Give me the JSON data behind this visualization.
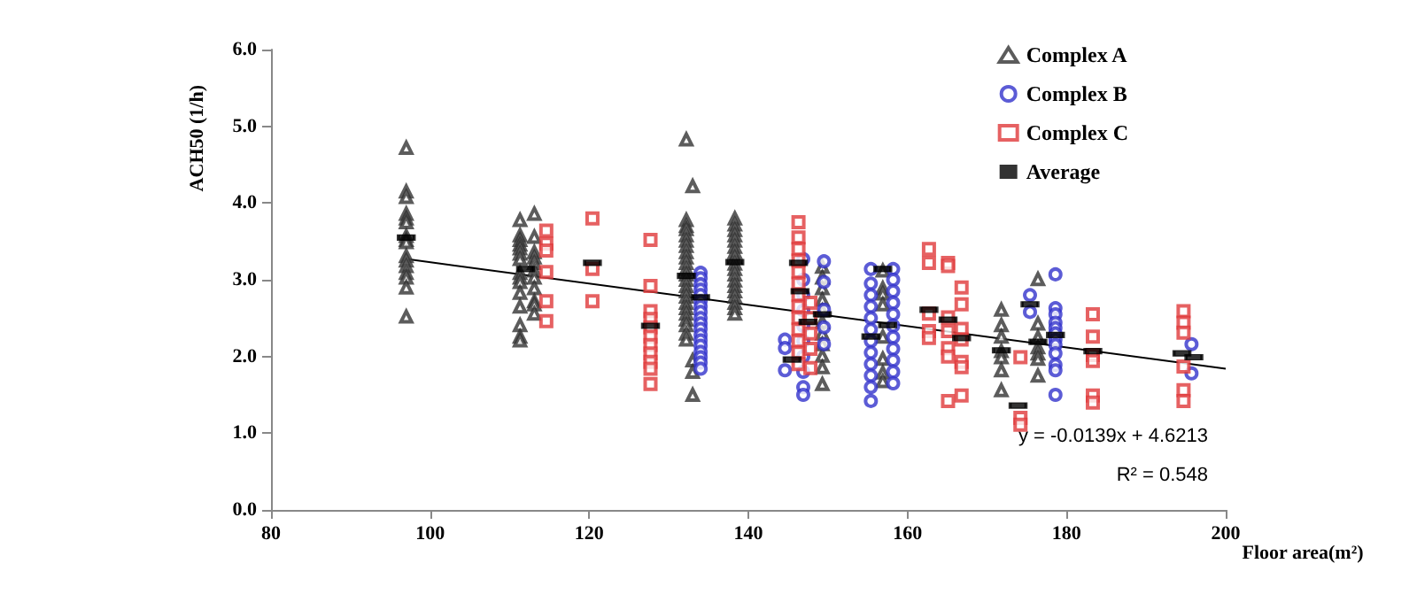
{
  "chart_data": {
    "type": "scatter",
    "xlabel": "Floor area(m²)",
    "ylabel": "ACH50 (1/h)",
    "xlim": [
      80,
      200
    ],
    "xticks": [
      80,
      100,
      120,
      140,
      160,
      180,
      200
    ],
    "ylim": [
      0,
      6
    ],
    "yticks": [
      {
        "value": 0,
        "label": "0.0"
      },
      {
        "value": 1,
        "label": "1.0"
      },
      {
        "value": 2,
        "label": "2.0"
      },
      {
        "value": 3,
        "label": "3.0"
      },
      {
        "value": 4,
        "label": "4.0"
      },
      {
        "value": 5,
        "label": "5.0"
      },
      {
        "value": 6,
        "label": "6.0"
      }
    ],
    "grid": false,
    "legend": "top right",
    "annotations": [
      "y = -0.0139x + 4.6213",
      "R² = 0.548"
    ],
    "series": [
      {
        "name": "Complex A",
        "color": "#333333",
        "marker": "triangle",
        "x": [
          97,
          97,
          97,
          97,
          97,
          97,
          97,
          97,
          97,
          97,
          97,
          97,
          97,
          97,
          97,
          97,
          111.3,
          111.3,
          111.3,
          111.3,
          111.3,
          111.3,
          111.3,
          111.3,
          111.3,
          111.3,
          111.3,
          111.3,
          111.3,
          111.3,
          111.3,
          113.1,
          113.1,
          113.1,
          113.1,
          113.1,
          113.1,
          113.1,
          113.1,
          113.1,
          113.1,
          113.1,
          132.2,
          132.2,
          132.2,
          132.2,
          132.2,
          132.2,
          132.2,
          132.2,
          132.2,
          132.2,
          132.2,
          132.2,
          132.2,
          132.2,
          132.2,
          132.2,
          132.2,
          132.2,
          132.2,
          132.2,
          132.2,
          132.2,
          132.2,
          133,
          133,
          133,
          133,
          138.3,
          138.3,
          138.3,
          138.3,
          138.3,
          138.3,
          138.3,
          138.3,
          138.3,
          138.3,
          138.3,
          138.3,
          138.3,
          138.3,
          138.3,
          138.3,
          138.3,
          138.3,
          149.3,
          149.3,
          149.3,
          149.3,
          149.3,
          149.3,
          149.3,
          149.3,
          149.3,
          149.3,
          149.3,
          156.9,
          156.9,
          156.9,
          156.9,
          156.9,
          156.9,
          156.9,
          156.9,
          171.8,
          171.8,
          171.8,
          171.8,
          171.8,
          171.8,
          171.8,
          176.4,
          176.4,
          176.4,
          176.4,
          176.4,
          176.4,
          176.4
        ],
        "values": [
          4.72,
          4.15,
          4.08,
          3.86,
          3.8,
          3.75,
          3.57,
          3.52,
          3.49,
          3.31,
          3.25,
          3.18,
          3.09,
          3.03,
          2.9,
          2.52,
          3.78,
          3.58,
          3.52,
          3.46,
          3.41,
          3.34,
          3.27,
          3.09,
          3.03,
          2.97,
          2.83,
          2.65,
          2.41,
          2.26,
          2.21,
          3.86,
          3.56,
          3.36,
          3.29,
          3.22,
          3.12,
          3.03,
          2.89,
          2.72,
          2.68,
          2.56,
          4.83,
          3.78,
          3.7,
          3.66,
          3.58,
          3.51,
          3.44,
          3.36,
          3.29,
          3.22,
          3.14,
          3.07,
          3.0,
          2.92,
          2.85,
          2.78,
          2.7,
          2.63,
          2.56,
          2.48,
          2.41,
          2.3,
          2.22,
          4.22,
          1.95,
          1.8,
          1.5,
          3.8,
          3.72,
          3.65,
          3.58,
          3.51,
          3.43,
          3.36,
          3.29,
          3.21,
          3.14,
          3.07,
          2.99,
          2.92,
          2.85,
          2.78,
          2.7,
          2.63,
          2.56,
          3.17,
          3.03,
          2.89,
          2.74,
          2.6,
          2.45,
          2.3,
          2.16,
          2.01,
          1.86,
          1.64,
          3.12,
          2.89,
          2.82,
          2.68,
          2.26,
          1.97,
          1.79,
          1.68,
          2.61,
          2.41,
          2.26,
          2.07,
          1.99,
          1.82,
          1.56,
          3.01,
          2.43,
          2.25,
          2.12,
          2.04,
          1.97,
          1.75
        ]
      },
      {
        "name": "Complex B",
        "color": "#3333cc",
        "marker": "circle",
        "x": [
          134,
          134,
          134,
          134,
          134,
          134,
          134,
          134,
          134,
          134,
          134,
          134,
          134,
          134,
          134,
          134,
          134,
          134,
          144.6,
          144.6,
          144.6,
          146.9,
          146.9,
          146.9,
          146.9,
          146.9,
          146.9,
          146.9,
          146.9,
          146.9,
          146.9,
          149.5,
          149.5,
          149.5,
          149.5,
          149.5,
          155.4,
          155.4,
          155.4,
          155.4,
          155.4,
          155.4,
          155.4,
          155.4,
          155.4,
          155.4,
          155.4,
          155.4,
          158.2,
          158.2,
          158.2,
          158.2,
          158.2,
          158.2,
          158.2,
          158.2,
          158.2,
          158.2,
          158.2,
          175.4,
          175.4,
          178.6,
          178.6,
          178.6,
          178.6,
          178.6,
          178.6,
          178.6,
          178.6,
          178.6,
          178.6,
          178.6,
          178.6,
          195.7,
          195.7
        ],
        "values": [
          3.09,
          3.02,
          2.94,
          2.87,
          2.8,
          2.72,
          2.65,
          2.58,
          2.5,
          2.43,
          2.36,
          2.28,
          2.21,
          2.14,
          2.06,
          1.99,
          1.92,
          1.84,
          2.22,
          2.11,
          1.82,
          3.27,
          3.0,
          2.8,
          2.6,
          2.4,
          2.2,
          2.0,
          1.8,
          1.6,
          1.5,
          3.24,
          2.97,
          2.61,
          2.38,
          2.16,
          3.14,
          2.95,
          2.8,
          2.65,
          2.5,
          2.35,
          2.2,
          2.05,
          1.9,
          1.75,
          1.6,
          1.42,
          3.14,
          3.0,
          2.85,
          2.7,
          2.55,
          2.4,
          2.25,
          2.1,
          1.95,
          1.8,
          1.65,
          2.8,
          2.58,
          3.07,
          2.63,
          2.55,
          2.44,
          2.37,
          2.3,
          2.22,
          2.15,
          2.04,
          1.89,
          1.82,
          1.5,
          2.16,
          1.78
        ]
      },
      {
        "name": "Complex C",
        "color": "#e0393b",
        "marker": "square",
        "x": [
          114.6,
          114.6,
          114.6,
          114.6,
          114.6,
          114.6,
          120.4,
          120.4,
          120.4,
          127.7,
          127.7,
          127.7,
          127.7,
          127.7,
          127.7,
          127.7,
          127.7,
          127.7,
          127.7,
          127.7,
          146.3,
          146.3,
          146.3,
          146.3,
          146.3,
          146.3,
          146.3,
          146.3,
          146.3,
          146.3,
          146.3,
          146.3,
          146.3,
          147.8,
          147.8,
          147.8,
          147.8,
          147.8,
          162.7,
          162.7,
          162.7,
          162.7,
          162.7,
          165.1,
          165.1,
          165.1,
          165.1,
          165.1,
          165.1,
          165.1,
          166.8,
          166.8,
          166.8,
          166.8,
          166.8,
          166.8,
          166.8,
          174.2,
          174.2,
          174.2,
          183.3,
          183.3,
          183.3,
          183.3,
          183.3,
          183.3,
          194.7,
          194.7,
          194.7,
          194.7,
          194.7,
          194.7
        ],
        "values": [
          3.64,
          3.47,
          3.38,
          3.1,
          2.72,
          2.46,
          3.8,
          3.14,
          2.72,
          3.52,
          2.92,
          2.59,
          2.49,
          2.38,
          2.26,
          2.15,
          2.04,
          1.93,
          1.84,
          1.64,
          3.75,
          3.55,
          3.4,
          3.25,
          3.1,
          2.95,
          2.8,
          2.65,
          2.5,
          2.35,
          2.2,
          2.05,
          1.9,
          2.7,
          2.5,
          2.3,
          2.1,
          1.85,
          3.4,
          3.22,
          2.56,
          2.33,
          2.24,
          3.22,
          3.18,
          2.51,
          2.33,
          2.11,
          2.0,
          1.42,
          2.9,
          2.68,
          2.36,
          2.22,
          1.93,
          1.86,
          1.49,
          1.99,
          1.2,
          1.11,
          2.55,
          2.26,
          2.02,
          1.94,
          1.49,
          1.4,
          2.59,
          2.44,
          2.31,
          1.87,
          1.56,
          1.42
        ]
      },
      {
        "name": "Average",
        "color": "#000000",
        "marker": "square",
        "x": [
          97,
          112,
          120.4,
          127.7,
          132.2,
          134,
          138.3,
          145.5,
          146.3,
          146.5,
          147.5,
          149.3,
          155.4,
          156.9,
          157.5,
          162.7,
          165.1,
          166.8,
          171.8,
          173.9,
          175.4,
          176.4,
          178.6,
          183.3,
          194.5,
          196
        ],
        "values": [
          3.55,
          3.14,
          3.22,
          2.4,
          3.05,
          2.77,
          3.23,
          1.96,
          3.22,
          2.85,
          2.45,
          2.55,
          2.26,
          3.14,
          2.41,
          2.61,
          2.48,
          2.24,
          2.08,
          1.36,
          2.68,
          2.19,
          2.28,
          2.07,
          2.04,
          1.99
        ]
      },
      {
        "type": "line",
        "color": "#000000",
        "marker": "none",
        "x": [
          97,
          200
        ],
        "values": [
          3.27,
          1.84
        ]
      }
    ]
  }
}
